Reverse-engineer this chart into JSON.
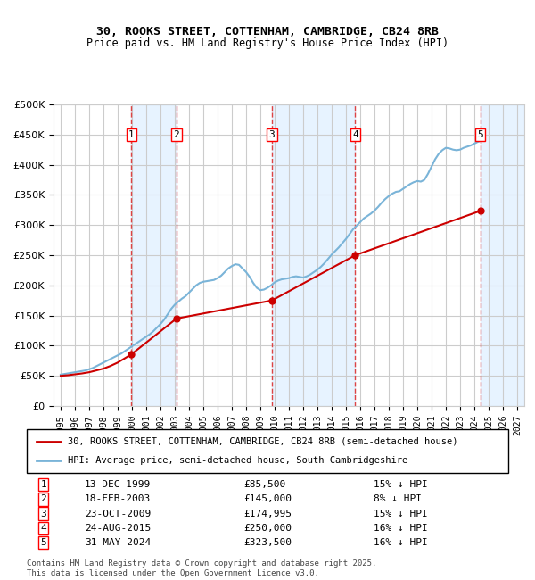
{
  "title": "30, ROOKS STREET, COTTENHAM, CAMBRIDGE, CB24 8RB",
  "subtitle": "Price paid vs. HM Land Registry's House Price Index (HPI)",
  "legend_line1": "30, ROOKS STREET, COTTENHAM, CAMBRIDGE, CB24 8RB (semi-detached house)",
  "legend_line2": "HPI: Average price, semi-detached house, South Cambridgeshire",
  "footer": "Contains HM Land Registry data © Crown copyright and database right 2025.\nThis data is licensed under the Open Government Licence v3.0.",
  "sales": [
    {
      "num": 1,
      "date": "13-DEC-1999",
      "price": 85500,
      "discount": "15% ↓ HPI",
      "year_x": 1999.95
    },
    {
      "num": 2,
      "date": "18-FEB-2003",
      "price": 145000,
      "discount": "8% ↓ HPI",
      "year_x": 2003.12
    },
    {
      "num": 3,
      "date": "23-OCT-2009",
      "price": 174995,
      "discount": "15% ↓ HPI",
      "year_x": 2009.81
    },
    {
      "num": 4,
      "date": "24-AUG-2015",
      "price": 250000,
      "discount": "16% ↓ HPI",
      "year_x": 2015.65
    },
    {
      "num": 5,
      "date": "31-MAY-2024",
      "price": 323500,
      "discount": "16% ↓ HPI",
      "year_x": 2024.42
    }
  ],
  "hpi_color": "#7ab4d8",
  "sale_color": "#cc0000",
  "grid_color": "#cccccc",
  "vline_color": "#dd4444",
  "shade_color": "#ddeeff",
  "ylim": [
    0,
    500000
  ],
  "yticks": [
    0,
    50000,
    100000,
    150000,
    200000,
    250000,
    300000,
    350000,
    400000,
    450000,
    500000
  ],
  "xlim": [
    1994.5,
    2027.5
  ],
  "xtick_years": [
    1995,
    1996,
    1997,
    1998,
    1999,
    2000,
    2001,
    2002,
    2003,
    2004,
    2005,
    2006,
    2007,
    2008,
    2009,
    2010,
    2011,
    2012,
    2013,
    2014,
    2015,
    2016,
    2017,
    2018,
    2019,
    2020,
    2021,
    2022,
    2023,
    2024,
    2025,
    2026,
    2027
  ],
  "hpi_data_x": [
    1995.0,
    1995.25,
    1995.5,
    1995.75,
    1996.0,
    1996.25,
    1996.5,
    1996.75,
    1997.0,
    1997.25,
    1997.5,
    1997.75,
    1998.0,
    1998.25,
    1998.5,
    1998.75,
    1999.0,
    1999.25,
    1999.5,
    1999.75,
    2000.0,
    2000.25,
    2000.5,
    2000.75,
    2001.0,
    2001.25,
    2001.5,
    2001.75,
    2002.0,
    2002.25,
    2002.5,
    2002.75,
    2003.0,
    2003.25,
    2003.5,
    2003.75,
    2004.0,
    2004.25,
    2004.5,
    2004.75,
    2005.0,
    2005.25,
    2005.5,
    2005.75,
    2006.0,
    2006.25,
    2006.5,
    2006.75,
    2007.0,
    2007.25,
    2007.5,
    2007.75,
    2008.0,
    2008.25,
    2008.5,
    2008.75,
    2009.0,
    2009.25,
    2009.5,
    2009.75,
    2010.0,
    2010.25,
    2010.5,
    2010.75,
    2011.0,
    2011.25,
    2011.5,
    2011.75,
    2012.0,
    2012.25,
    2012.5,
    2012.75,
    2013.0,
    2013.25,
    2013.5,
    2013.75,
    2014.0,
    2014.25,
    2014.5,
    2014.75,
    2015.0,
    2015.25,
    2015.5,
    2015.75,
    2016.0,
    2016.25,
    2016.5,
    2016.75,
    2017.0,
    2017.25,
    2017.5,
    2017.75,
    2018.0,
    2018.25,
    2018.5,
    2018.75,
    2019.0,
    2019.25,
    2019.5,
    2019.75,
    2020.0,
    2020.25,
    2020.5,
    2020.75,
    2021.0,
    2021.25,
    2021.5,
    2021.75,
    2022.0,
    2022.25,
    2022.5,
    2022.75,
    2023.0,
    2023.25,
    2023.5,
    2023.75,
    2024.0,
    2024.25,
    2024.5
  ],
  "hpi_data_y": [
    52000,
    53000,
    54000,
    55000,
    56000,
    57000,
    58000,
    59000,
    61000,
    63000,
    66000,
    69000,
    72000,
    75000,
    78000,
    81000,
    84000,
    87000,
    91000,
    95000,
    99000,
    103000,
    107000,
    111000,
    115000,
    119000,
    124000,
    130000,
    136000,
    143000,
    152000,
    161000,
    168000,
    173000,
    178000,
    182000,
    188000,
    194000,
    200000,
    204000,
    206000,
    207000,
    208000,
    209000,
    212000,
    216000,
    222000,
    228000,
    232000,
    235000,
    234000,
    228000,
    222000,
    214000,
    204000,
    196000,
    192000,
    193000,
    196000,
    200000,
    205000,
    208000,
    210000,
    211000,
    212000,
    214000,
    215000,
    214000,
    213000,
    215000,
    218000,
    222000,
    226000,
    231000,
    237000,
    244000,
    251000,
    257000,
    263000,
    270000,
    277000,
    285000,
    293000,
    299000,
    305000,
    311000,
    315000,
    319000,
    324000,
    330000,
    337000,
    343000,
    348000,
    352000,
    355000,
    356000,
    360000,
    364000,
    368000,
    371000,
    373000,
    372000,
    375000,
    385000,
    397000,
    409000,
    418000,
    424000,
    428000,
    427000,
    425000,
    424000,
    425000,
    428000,
    430000,
    432000,
    435000,
    438000,
    440000
  ],
  "sale_data_x": [
    1995.0,
    1995.5,
    1996.0,
    1996.5,
    1997.0,
    1997.5,
    1998.0,
    1998.5,
    1999.0,
    1999.95,
    2003.12,
    2009.81,
    2015.65,
    2024.42
  ],
  "sale_data_y": [
    50000,
    51000,
    52500,
    54000,
    56000,
    59000,
    62000,
    66500,
    72000,
    85500,
    145000,
    174995,
    250000,
    323500
  ]
}
